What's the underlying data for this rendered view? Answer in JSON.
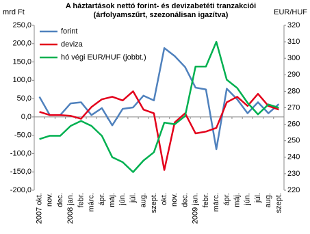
{
  "chart_data": {
    "type": "line",
    "title": "A háztartások nettó forint- és devizabetéti tranzakciói",
    "subtitle": "(árfolyamszűrt, szezonálisan igazítva)",
    "y_label": "mrd Ft",
    "y2_label": "EUR/HUF",
    "categories": [
      "2007 okt.",
      "nov.",
      "dec.",
      "2008 jan.",
      "febr.",
      "márc.",
      "ápr.",
      "máj.",
      "jún.",
      "júl.",
      "aug.",
      "szept.",
      "okt.",
      "nov.",
      "dec.",
      "2009 jan.",
      "febr.",
      "márc.",
      "ápr.",
      "máj.",
      "jún.",
      "júl.",
      "aug.",
      "szept."
    ],
    "series": [
      {
        "name": "forint",
        "color": "#4f81bd",
        "values": [
          55,
          5,
          5,
          37,
          40,
          5,
          24,
          -23,
          22,
          26,
          58,
          45,
          188,
          166,
          136,
          80,
          75,
          -88,
          77,
          48,
          10,
          40,
          10,
          35
        ]
      },
      {
        "name": "deviza",
        "color": "#e3001b",
        "values": [
          14,
          5,
          5,
          3,
          -5,
          27,
          48,
          55,
          45,
          70,
          20,
          10,
          -145,
          -15,
          10,
          -45,
          -40,
          -30,
          40,
          55,
          30,
          63,
          30,
          20
        ]
      },
      {
        "name": "hó végi EUR/HUF (jobbt.)",
        "color": "#00b050",
        "axis": "y2",
        "values": [
          251,
          253,
          253,
          259,
          262,
          259,
          253,
          240,
          237,
          231,
          238,
          243,
          261,
          260,
          265,
          295,
          295,
          310,
          287,
          282,
          273,
          266,
          272,
          270
        ]
      }
    ],
    "ylim": [
      -200,
      250
    ],
    "yticks": [
      {
        "value": -200,
        "label": "-200,0"
      },
      {
        "value": -150,
        "label": "-150,0"
      },
      {
        "value": -100,
        "label": "-100,0"
      },
      {
        "value": -50,
        "label": "-50,0"
      },
      {
        "value": 0,
        "label": "0,0"
      },
      {
        "value": 50,
        "label": "50,0"
      },
      {
        "value": 100,
        "label": "100,0"
      },
      {
        "value": 150,
        "label": "150,0"
      },
      {
        "value": 200,
        "label": "200,0"
      },
      {
        "value": 250,
        "label": "250,0"
      }
    ],
    "y2lim": [
      220,
      320
    ],
    "y2ticks": [
      220,
      230,
      240,
      250,
      260,
      270,
      280,
      290,
      300,
      310,
      320
    ],
    "grid": false,
    "legend": "upper left"
  }
}
